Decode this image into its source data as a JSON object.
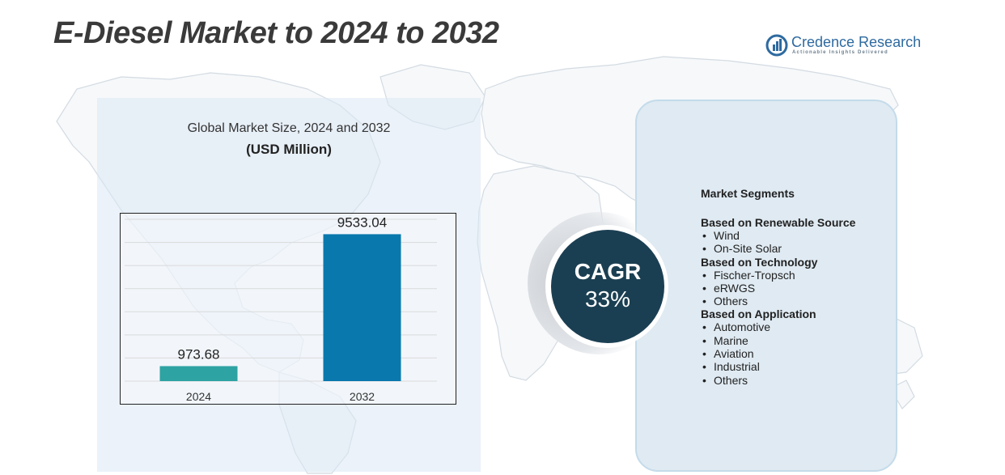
{
  "title": "E-Diesel Market to 2024 to 2032",
  "logo": {
    "name": "Credence Research",
    "tagline": "Actionable Insights Delivered"
  },
  "chart_data": {
    "type": "bar",
    "title": "Global Market Size,  2024 and 2032",
    "subtitle": "(USD Million)",
    "categories": [
      "2024",
      "2032"
    ],
    "values": [
      973.68,
      9533.04
    ],
    "value_labels": [
      "973.68",
      "9533.04"
    ],
    "ylim": [
      0,
      10500
    ],
    "grid": true,
    "colors": [
      "#2ea3a3",
      "#0878ad"
    ]
  },
  "cagr": {
    "label": "CAGR",
    "value": "33%"
  },
  "segments": {
    "heading": "Market Segments",
    "groups": [
      {
        "title": "Based on Renewable Source",
        "items": [
          "Wind",
          "On-Site Solar"
        ]
      },
      {
        "title": "Based on Technology",
        "items": [
          "Fischer-Tropsch",
          "eRWGS",
          "Others"
        ]
      },
      {
        "title": "Based on Application",
        "items": [
          "Automotive",
          "Marine",
          "Aviation",
          "Industrial",
          "Others"
        ]
      }
    ]
  },
  "colors": {
    "title": "#3a3a3a",
    "cagr_circle": "#1b3f52",
    "panel": "#dfeaf2",
    "brand": "#2e6aa0"
  },
  "icons": [
    "credence-logo-icon",
    "world-map-background"
  ]
}
